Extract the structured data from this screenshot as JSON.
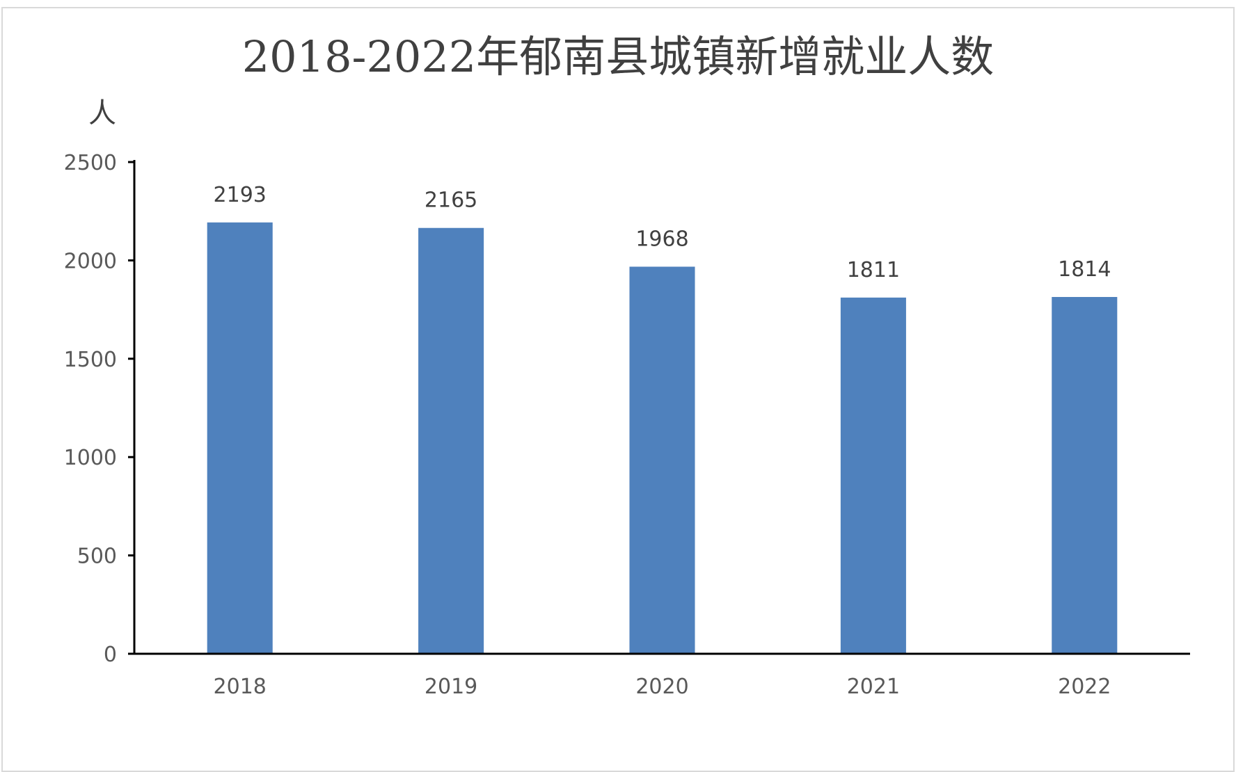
{
  "chart_data": {
    "type": "bar",
    "title": "2018-2022年郁南县城镇新增就业人数",
    "ylabel": "人",
    "xlabel": "",
    "categories": [
      "2018",
      "2019",
      "2020",
      "2021",
      "2022"
    ],
    "values": [
      2193,
      2165,
      1968,
      1811,
      1814
    ],
    "ylim": [
      0,
      2500
    ],
    "yticks": [
      0,
      500,
      1000,
      1500,
      2000,
      2500
    ],
    "data_labels": true,
    "grid": false,
    "legend": "none",
    "colors": {
      "bar": "#4F81BD",
      "axis": "#000000",
      "text": "#404040"
    }
  }
}
